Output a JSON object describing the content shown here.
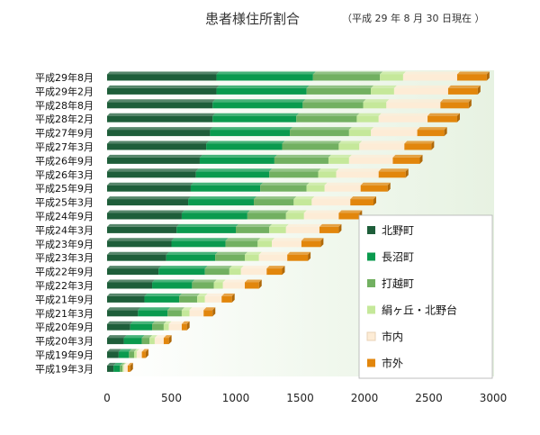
{
  "title": "患者様住所割合",
  "subtitle": "（平成 29 年 8 月 30 日現在 ）",
  "chart_data": {
    "type": "bar",
    "orientation": "horizontal",
    "stacked": true,
    "title": "患者様住所割合",
    "subtitle": "（平成 29 年 8 月 30 日現在 ）",
    "categories": [
      "平成29年8月",
      "平成29年2月",
      "平成28年8月",
      "平成28年2月",
      "平成27年9月",
      "平成27年3月",
      "平成26年9月",
      "平成26年3月",
      "平成25年9月",
      "平成25年3月",
      "平成24年9月",
      "平成24年3月",
      "平成23年9月",
      "平成23年3月",
      "平成22年9月",
      "平成22年3月",
      "平成21年9月",
      "平成21年3月",
      "平成20年9月",
      "平成20年3月",
      "平成19年9月",
      "平成19年3月"
    ],
    "series": [
      {
        "name": "北野町",
        "color": "#1e5e3a",
        "values": [
          850,
          850,
          820,
          820,
          800,
          770,
          720,
          690,
          650,
          630,
          580,
          540,
          500,
          460,
          400,
          350,
          290,
          240,
          180,
          130,
          90,
          50
        ]
      },
      {
        "name": "長沼町",
        "color": "#0a9a4e",
        "values": [
          750,
          700,
          700,
          650,
          620,
          590,
          580,
          570,
          540,
          510,
          510,
          460,
          420,
          380,
          360,
          310,
          270,
          230,
          170,
          140,
          80,
          50
        ]
      },
      {
        "name": "打越町",
        "color": "#72b061",
        "values": [
          520,
          500,
          470,
          470,
          460,
          440,
          420,
          380,
          360,
          310,
          300,
          260,
          250,
          230,
          190,
          170,
          140,
          110,
          90,
          60,
          40,
          20
        ]
      },
      {
        "name": "絹ヶ丘・北野台",
        "color": "#c5e89a",
        "values": [
          180,
          180,
          180,
          170,
          170,
          160,
          160,
          140,
          140,
          140,
          140,
          130,
          110,
          110,
          90,
          70,
          60,
          60,
          40,
          40,
          20,
          10
        ]
      },
      {
        "name": "市内",
        "color": "#fdecd6",
        "values": [
          420,
          420,
          420,
          380,
          360,
          350,
          340,
          330,
          280,
          300,
          270,
          260,
          230,
          220,
          200,
          170,
          130,
          110,
          100,
          70,
          40,
          30
        ]
      },
      {
        "name": "市外",
        "color": "#e2860c",
        "values": [
          230,
          230,
          220,
          230,
          210,
          210,
          210,
          210,
          210,
          180,
          160,
          150,
          150,
          160,
          120,
          110,
          80,
          70,
          40,
          40,
          30,
          20
        ]
      }
    ],
    "xlim": [
      0,
      3000
    ],
    "xticks": [
      0,
      500,
      1000,
      1500,
      2000,
      2500,
      3000
    ],
    "xlabel": "",
    "ylabel": "",
    "grid": false,
    "legend_position": "right"
  }
}
